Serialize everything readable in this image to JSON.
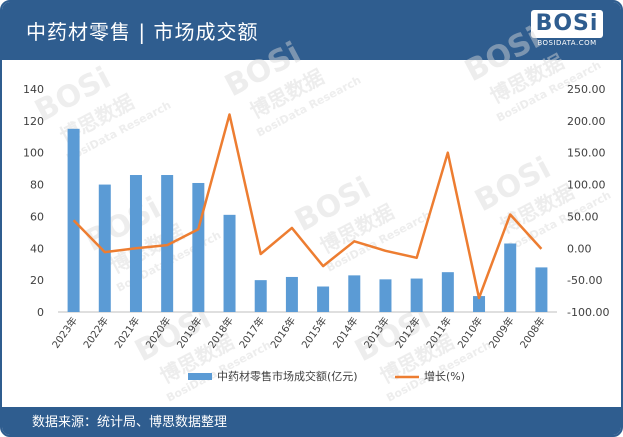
{
  "header": {
    "title": "中药材零售 | 市场成交额",
    "logo_text": "BOSi",
    "logo_sub": "BOSIDATA.COM"
  },
  "footer": {
    "source": "数据来源：统计局、博思数据整理"
  },
  "watermark": {
    "brand": "BOSi",
    "cn": "博思数据",
    "en": "BosiData Research"
  },
  "colors": {
    "header_bg": "#2f5d8f",
    "bar": "#5b9bd5",
    "line": "#ed7d31"
  },
  "chart_data": {
    "type": "bar",
    "categories": [
      "2023年",
      "2022年",
      "2021年",
      "2020年",
      "2019年",
      "2018年",
      "2017年",
      "2016年",
      "2015年",
      "2014年",
      "2013年",
      "2012年",
      "2011年",
      "2010年",
      "2009年",
      "2008年"
    ],
    "series": [
      {
        "name": "中药材零售市场成交额(亿元)",
        "type": "bar",
        "axis": "left",
        "values": [
          115,
          80,
          86,
          86,
          81,
          61,
          20,
          22,
          16,
          23,
          20.5,
          21,
          25,
          10,
          43,
          28
        ]
      },
      {
        "name": "增长(%)",
        "type": "line",
        "axis": "right",
        "values": [
          44,
          -6,
          0,
          5,
          30,
          210,
          -9,
          32,
          -28,
          11,
          -4,
          -15,
          150,
          -78,
          53,
          -1
        ]
      }
    ],
    "y_left": {
      "ticks": [
        "0",
        "20",
        "40",
        "60",
        "80",
        "100",
        "120",
        "140"
      ],
      "lim": [
        0,
        140
      ]
    },
    "y_right": {
      "ticks": [
        "-100.00",
        "-50.00",
        "0.00",
        "50.00",
        "100.00",
        "150.00",
        "200.00",
        "250.00"
      ],
      "lim": [
        -100,
        250
      ]
    },
    "xlabel": "",
    "ylabel": "",
    "grid": false,
    "legend": "bottom"
  }
}
